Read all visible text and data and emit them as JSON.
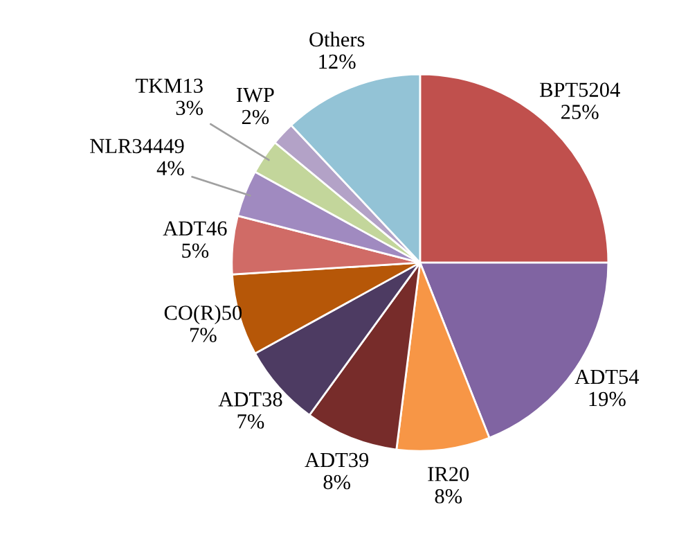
{
  "chart_data": {
    "type": "pie",
    "categories": [
      "BPT5204",
      "ADT54",
      "IR20",
      "ADT39",
      "ADT38",
      "CO(R)50",
      "ADT46",
      "NLR34449",
      "TKM13",
      "IWP",
      "Others"
    ],
    "values": [
      25,
      19,
      8,
      8,
      7,
      7,
      5,
      4,
      3,
      2,
      12
    ],
    "colors": [
      "#c0504d",
      "#8064a2",
      "#f79646",
      "#772c2a",
      "#4d3b62",
      "#b65708",
      "#d06b66",
      "#a08ac0",
      "#c3d69b",
      "#b3a2c7",
      "#93c3d6"
    ],
    "value_labels": [
      "25%",
      "19%",
      "8%",
      "8%",
      "7%",
      "7%",
      "5%",
      "4%",
      "3%",
      "2%",
      "12%"
    ],
    "legend": false
  }
}
